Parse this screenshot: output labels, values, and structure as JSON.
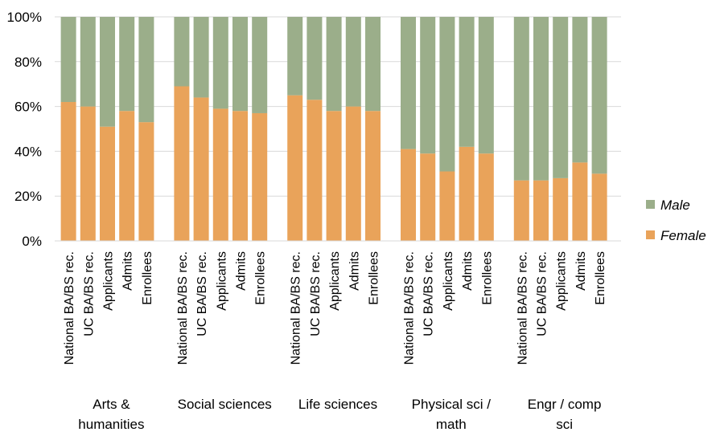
{
  "chart_data": {
    "type": "bar",
    "stacked": true,
    "title": "",
    "xlabel": "",
    "ylabel": "",
    "ylim": [
      0,
      100
    ],
    "yticks": [
      "0%",
      "20%",
      "40%",
      "60%",
      "80%",
      "100%"
    ],
    "categories": [
      "National BA/BS rec.",
      "UC BA/BS rec.",
      "Applicants",
      "Admits",
      "Enrollees"
    ],
    "groups": [
      {
        "name": "Arts & humanities",
        "lines": [
          "Arts &",
          "humanities"
        ],
        "female": [
          62,
          60,
          51,
          58,
          53
        ]
      },
      {
        "name": "Social sciences",
        "lines": [
          "Social sciences"
        ],
        "female": [
          69,
          64,
          59,
          58,
          57
        ]
      },
      {
        "name": "Life sciences",
        "lines": [
          "Life sciences"
        ],
        "female": [
          65,
          63,
          58,
          60,
          58
        ]
      },
      {
        "name": "Physical sci / math",
        "lines": [
          "Physical sci /",
          "math"
        ],
        "female": [
          41,
          39,
          31,
          42,
          39
        ]
      },
      {
        "name": "Engr / comp sci",
        "lines": [
          "Engr / comp",
          "sci"
        ],
        "female": [
          27,
          27,
          28,
          35,
          30
        ]
      }
    ],
    "series": [
      {
        "name": "Female",
        "color": "#E9A35A"
      },
      {
        "name": "Male",
        "color": "#9BAE8A"
      }
    ],
    "legend": {
      "position": "right",
      "items": [
        "Male",
        "Female"
      ]
    },
    "grid": true
  }
}
